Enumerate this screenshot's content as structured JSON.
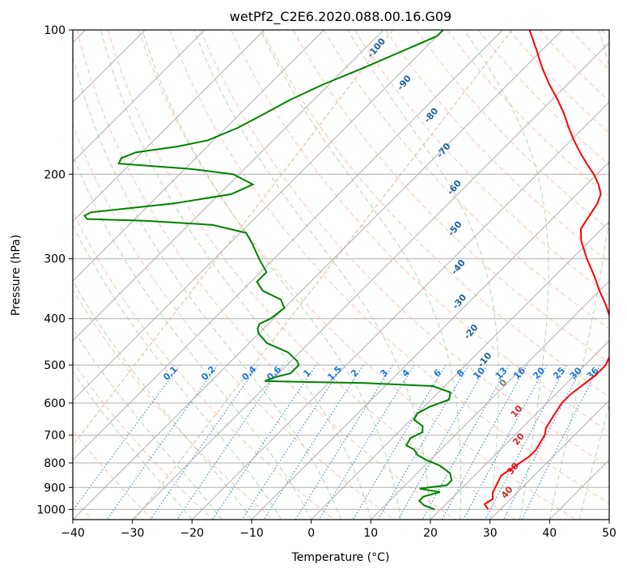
{
  "chart_data": {
    "type": "line",
    "title": "wetPf2_C2E6.2020.088.00.16.G09",
    "xlabel": "Temperature (°C)",
    "ylabel": "Pressure (hPa)",
    "xlim": [
      -40,
      50
    ],
    "ylim": [
      1050,
      100
    ],
    "y_scale": "log",
    "skew": true,
    "grid": true,
    "x_ticks": [
      -40,
      -30,
      -20,
      -10,
      0,
      10,
      20,
      30,
      40,
      50
    ],
    "y_ticks": [
      100,
      200,
      300,
      400,
      500,
      600,
      700,
      800,
      900,
      1000
    ],
    "colors": {
      "temperature": "#ff0000",
      "dewpoint": "#008000",
      "isotherm_grid": "#b0b0b0",
      "dry_adiabat": "#ff9f80",
      "moist_adiabat": "#8fc98f",
      "mixing_ratio": "#1f77d4",
      "theta_label": "#1f5f9f",
      "theta_warm_label": "#d62728",
      "lcl_curve": "#d8b890"
    },
    "series": [
      {
        "temperature_pressure": [
          1000,
          975,
          950,
          925,
          900,
          875,
          850,
          825,
          800,
          775,
          750,
          725,
          700,
          675,
          650,
          625,
          600,
          575,
          550,
          525,
          500,
          475,
          450,
          425,
          400,
          375,
          350,
          325,
          300,
          275,
          260,
          250,
          240,
          230,
          220,
          210,
          200,
          190,
          180,
          170,
          160,
          150,
          140,
          130,
          120,
          110,
          100
        ],
        "temperature_values": [
          28.0,
          26.5,
          27.0,
          26.0,
          25.5,
          25.0,
          24.5,
          25.0,
          25.5,
          26.0,
          26.0,
          25.5,
          25.0,
          24.0,
          23.5,
          23.0,
          22.5,
          22.5,
          23.0,
          23.5,
          23.5,
          22.5,
          21.0,
          19.0,
          16.5,
          13.5,
          10.0,
          6.5,
          2.5,
          -1.5,
          -3.5,
          -4.0,
          -4.5,
          -5.0,
          -6.0,
          -8.0,
          -10.5,
          -13.5,
          -16.5,
          -19.5,
          -22.5,
          -25.5,
          -29.0,
          -33.0,
          -37.0,
          -41.0,
          -45.5
        ],
        "dewpoint_pressure": [
          1000,
          980,
          960,
          940,
          920,
          905,
          890,
          870,
          840,
          810,
          790,
          770,
          750,
          735,
          710,
          690,
          670,
          650,
          630,
          610,
          590,
          570,
          553,
          545,
          540,
          530,
          520,
          510,
          500,
          490,
          470,
          450,
          430,
          420,
          410,
          400,
          380,
          365,
          350,
          335,
          320,
          300,
          280,
          265,
          255,
          250,
          248,
          244,
          240,
          230,
          220,
          210,
          200,
          195,
          190,
          185,
          180,
          175,
          170,
          160,
          150,
          140,
          130,
          120,
          110,
          103,
          100
        ],
        "dewpoint_values": [
          19.0,
          16.5,
          15.0,
          15.0,
          17.0,
          13.0,
          17.0,
          17.0,
          15.5,
          12.5,
          9.5,
          7.0,
          5.5,
          3.5,
          3.0,
          4.0,
          3.0,
          0.5,
          0.0,
          1.0,
          3.0,
          2.0,
          -2.0,
          -14.0,
          -31.0,
          -30.0,
          -28.0,
          -28.0,
          -28.0,
          -29.0,
          -32.0,
          -37.0,
          -40.0,
          -41.0,
          -41.5,
          -40.5,
          -40.0,
          -42.0,
          -46.5,
          -49.0,
          -49.0,
          -52.5,
          -56.0,
          -59.0,
          -66.0,
          -78.0,
          -88.0,
          -89.0,
          -88.5,
          -76.0,
          -68.0,
          -66.0,
          -71.0,
          -79.0,
          -92.0,
          -92.5,
          -91.0,
          -85.0,
          -81.0,
          -78.0,
          -76.0,
          -74.0,
          -71.0,
          -67.0,
          -63.0,
          -60.0,
          -60.0
        ]
      }
    ],
    "dry_adiabat_labels": [
      "-100",
      "-90",
      "-80",
      "-70",
      "-60",
      "-50",
      "-40",
      "-30",
      "-20",
      "-10",
      "0",
      "10",
      "20",
      "30",
      "40"
    ],
    "mixing_ratio_labels": [
      "0.1",
      "0.2",
      "0.4",
      "0.6",
      "1",
      "1.5",
      "2",
      "3",
      "4",
      "6",
      "8",
      "10",
      "13",
      "16",
      "20",
      "25",
      "30",
      "36"
    ]
  }
}
